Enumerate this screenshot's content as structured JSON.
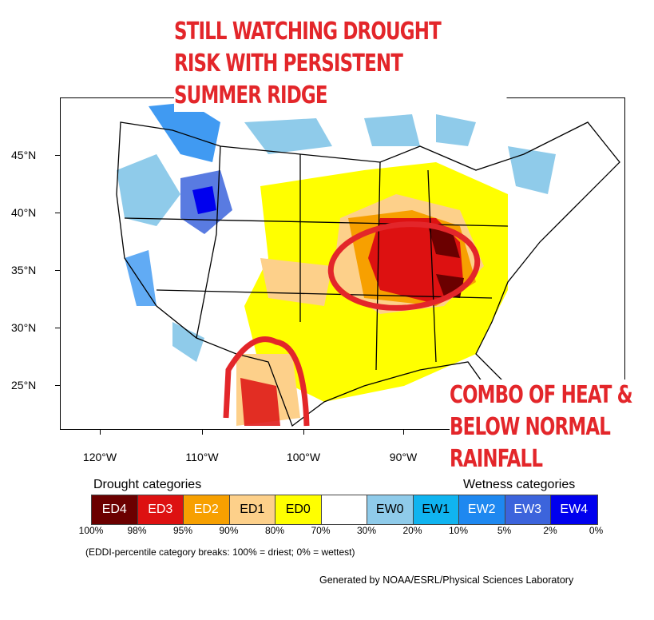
{
  "title_annotation": [
    "STILL WATCHING DROUGHT",
    "RISK WITH PERSISTENT",
    "SUMMER RIDGE"
  ],
  "side_annotation": [
    "COMBO OF HEAT &",
    "BELOW NORMAL",
    "RAINFALL"
  ],
  "axes": {
    "latitudes": [
      "45°N",
      "40°N",
      "35°N",
      "30°N",
      "25°N"
    ],
    "longitudes": [
      "120°W",
      "110°W",
      "100°W",
      "90°W"
    ]
  },
  "legend": {
    "drought_title": "Drought categories",
    "wetness_title": "Wetness categories",
    "categories": [
      {
        "label": "ED4",
        "color": "#6b0000",
        "text": "#ffffff"
      },
      {
        "label": "ED3",
        "color": "#dd1111",
        "text": "#ffffff"
      },
      {
        "label": "ED2",
        "color": "#f7a000",
        "text": "#ffffff"
      },
      {
        "label": "ED1",
        "color": "#fdd08a",
        "text": "#000000"
      },
      {
        "label": "ED0",
        "color": "#ffff00",
        "text": "#000000"
      },
      {
        "label": "",
        "color": "#ffffff",
        "text": "#000000"
      },
      {
        "label": "EW0",
        "color": "#8fcbea",
        "text": "#000000"
      },
      {
        "label": "EW1",
        "color": "#10b4f0",
        "text": "#000000"
      },
      {
        "label": "EW2",
        "color": "#1e88f0",
        "text": "#ffffff"
      },
      {
        "label": "EW3",
        "color": "#3c64dc",
        "text": "#ffffff"
      },
      {
        "label": "EW4",
        "color": "#0000ee",
        "text": "#ffffff"
      }
    ],
    "breaks": [
      "100%",
      "98%",
      "95%",
      "90%",
      "80%",
      "70%",
      "30%",
      "20%",
      "10%",
      "5%",
      "2%",
      "0%"
    ],
    "note": "(EDDI-percentile category breaks: 100% = driest; 0% = wettest)"
  },
  "credit": "Generated by NOAA/ESRL/Physical Sciences Laboratory"
}
